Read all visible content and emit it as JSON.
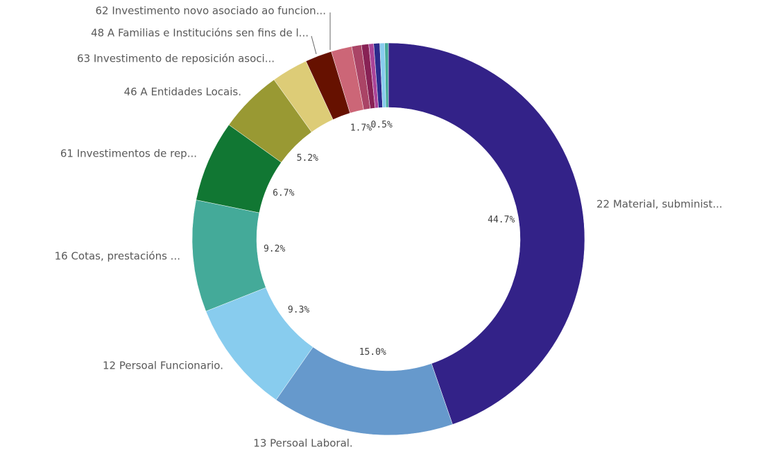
{
  "chart_data": {
    "type": "donut",
    "categories": [
      "22 Material, subminist...",
      "13 Persoal Laboral.",
      "12 Persoal Funcionario.",
      "16 Cotas, prestacións ...",
      "61 Investimentos de rep...",
      "46 A Entidades Locais.",
      "63 Investimento de reposición asoci...",
      "48 A Familias e Institucións sen fins de l...",
      "62 Investimento novo asociado ao funcion...",
      null,
      null,
      null,
      null,
      null,
      null
    ],
    "values": [
      44.7,
      15.0,
      9.3,
      9.2,
      6.7,
      5.2,
      3.0,
      2.2,
      1.7,
      0.8,
      0.6,
      0.4,
      0.5,
      0.4,
      0.3
    ],
    "value_labels": [
      "44.7%",
      "15.0%",
      "9.3%",
      "9.2%",
      "6.7%",
      "5.2%",
      null,
      null,
      "1.7%",
      null,
      null,
      null,
      "0.5%",
      null,
      null
    ],
    "colors": [
      "#332288",
      "#6699cc",
      "#88ccee",
      "#44aa99",
      "#117733",
      "#999933",
      "#ddcc77",
      "#661100",
      "#cc6677",
      "#aa4466",
      "#882255",
      "#aa4499",
      "#2d2a8c",
      "#88ccee",
      "#44aa99"
    ]
  }
}
